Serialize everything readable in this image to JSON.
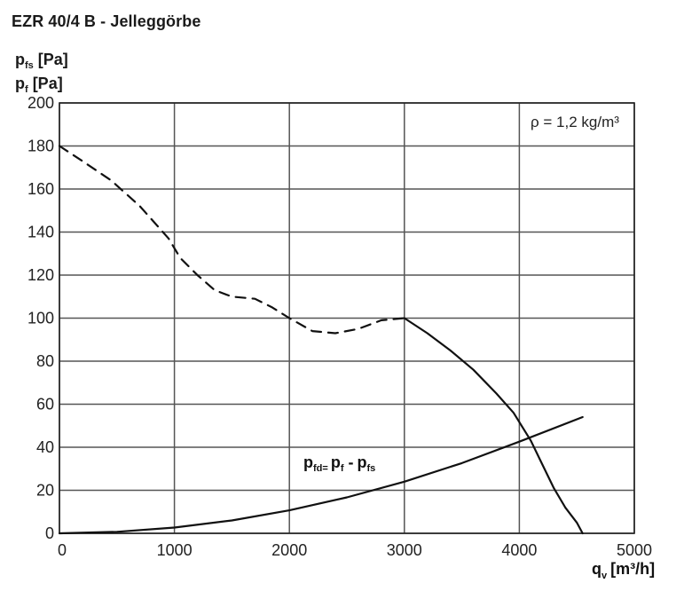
{
  "title": "EZR 40/4 B - Jelleggörbe",
  "axis_labels": {
    "y1_base": "p",
    "y1_sub": "fs",
    "y1_unit": "[Pa]",
    "y2_base": "p",
    "y2_sub": "f",
    "y2_unit": "[Pa]",
    "x_base": "q",
    "x_sub": "v",
    "x_unit": "[m³/h]"
  },
  "density_label": "ρ = 1,2 kg/m³",
  "formula": {
    "a": "p",
    "a_sub": "fd",
    "eq": "=",
    "b": "p",
    "b_sub": "f",
    "minus": "-",
    "c": "p",
    "c_sub": "fs"
  },
  "chart_data": {
    "type": "line",
    "title": "EZR 40/4 B - Jelleggörbe",
    "xlim": [
      0,
      5000
    ],
    "ylim": [
      0,
      200
    ],
    "x_ticks": [
      "0",
      "1000",
      "2000",
      "3000",
      "4000",
      "5000"
    ],
    "y_ticks": [
      "0",
      "20",
      "40",
      "60",
      "80",
      "100",
      "120",
      "140",
      "160",
      "180",
      "200"
    ],
    "grid": true,
    "series": [
      {
        "style": "dashed",
        "x": [
          0,
          200,
          450,
          700,
          950,
          1050,
          1200,
          1350,
          1500,
          1700,
          1850,
          2000,
          2200,
          2400,
          2600,
          2800,
          3000
        ],
        "y": [
          180,
          173,
          164,
          152,
          137,
          128,
          120,
          113,
          110,
          109,
          105,
          100,
          94,
          93,
          95,
          99,
          100
        ]
      },
      {
        "style": "solid",
        "x": [
          3000,
          3200,
          3400,
          3600,
          3800,
          3950,
          4100,
          4200,
          4300,
          4400,
          4500,
          4550
        ],
        "y": [
          100,
          93,
          85,
          76,
          65,
          56,
          43,
          32,
          21,
          12,
          5,
          0
        ]
      },
      {
        "name": "p fd = p f - p fs",
        "style": "solid",
        "x": [
          0,
          500,
          1000,
          1500,
          2000,
          2500,
          3000,
          3500,
          4000,
          4550
        ],
        "y": [
          0,
          0.7,
          2.7,
          6.0,
          10.7,
          16.7,
          24.0,
          32.6,
          42.6,
          54.0
        ]
      }
    ]
  }
}
